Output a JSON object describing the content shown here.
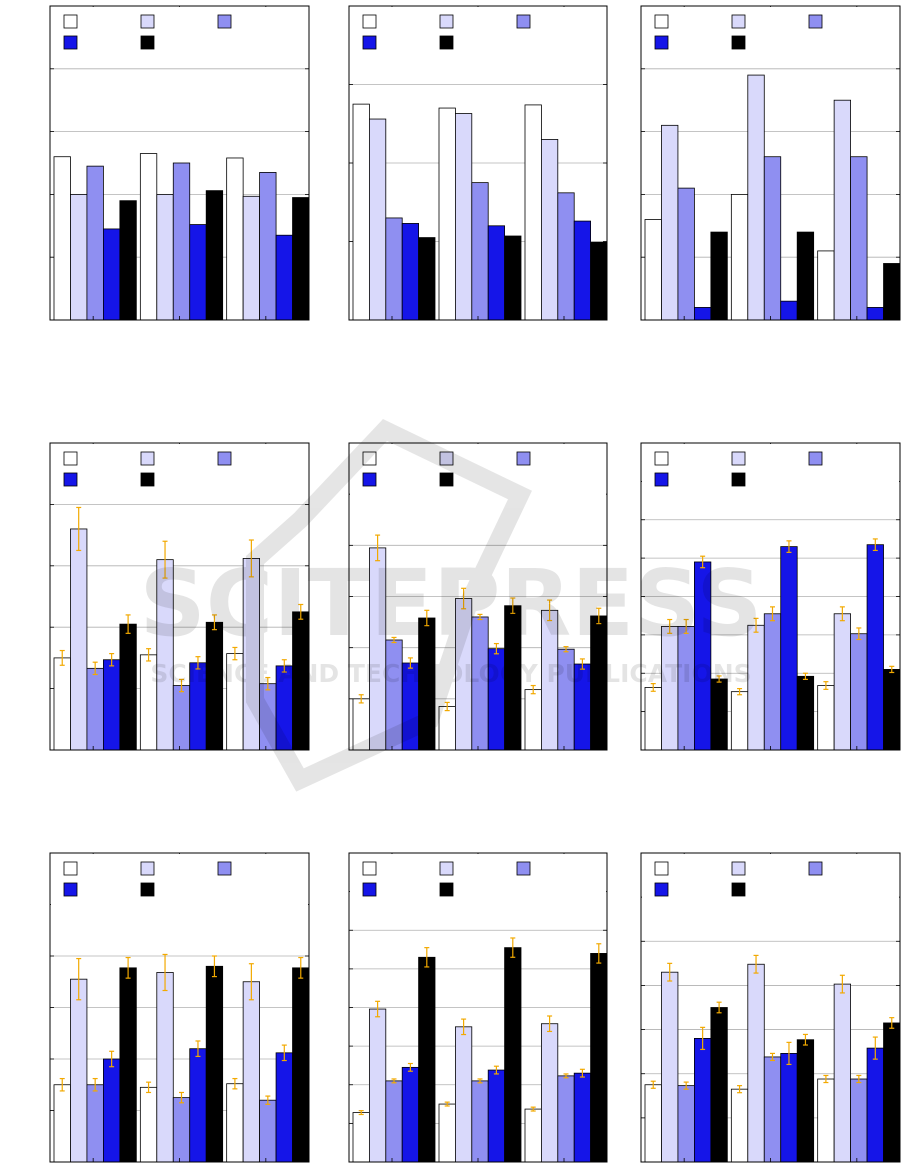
{
  "colors": {
    "s1": "#ffffff",
    "s2": "#d9d9fb",
    "s3": "#8f8ff1",
    "s4": "#1515e8",
    "s5": "#000000",
    "error_bar": "#f2a900",
    "grid": "#b0b0b0"
  },
  "watermark": {
    "main": "SCITEPRESS",
    "sub": "SCIENCE AND TECHNOLOGY PUBLICATIONS"
  },
  "chart_data": [
    {
      "type": "bar",
      "ylim": [
        0,
        5
      ],
      "legend": "top-left",
      "grid": true,
      "error_bars": false,
      "series": [
        {
          "values": [
            2.6,
            2.65,
            2.58
          ]
        },
        {
          "values": [
            2.0,
            2.0,
            1.97
          ]
        },
        {
          "values": [
            2.45,
            2.5,
            2.35
          ]
        },
        {
          "values": [
            1.45,
            1.52,
            1.35
          ]
        },
        {
          "values": [
            1.9,
            2.06,
            1.95
          ]
        }
      ]
    },
    {
      "type": "bar",
      "ylim": [
        0,
        4
      ],
      "legend": "top-left",
      "grid": true,
      "error_bars": false,
      "series": [
        {
          "values": [
            2.75,
            2.7,
            2.74
          ]
        },
        {
          "values": [
            2.56,
            2.63,
            2.3
          ]
        },
        {
          "values": [
            1.3,
            1.75,
            1.62
          ]
        },
        {
          "values": [
            1.23,
            1.2,
            1.26
          ]
        },
        {
          "values": [
            1.05,
            1.07,
            0.99
          ]
        }
      ]
    },
    {
      "type": "bar",
      "ylim": [
        0,
        5
      ],
      "legend": "top-left",
      "grid": true,
      "error_bars": false,
      "series": [
        {
          "values": [
            1.6,
            2.0,
            1.1
          ]
        },
        {
          "values": [
            3.1,
            3.9,
            3.5
          ]
        },
        {
          "values": [
            2.1,
            2.6,
            2.6
          ]
        },
        {
          "values": [
            0.2,
            0.3,
            0.2
          ]
        },
        {
          "values": [
            1.4,
            1.4,
            0.9
          ]
        }
      ]
    },
    {
      "type": "bar",
      "ylim": [
        0,
        5
      ],
      "legend": "top-left",
      "grid": true,
      "error_bars": true,
      "series": [
        {
          "values": [
            1.5,
            1.55,
            1.57
          ],
          "errors": [
            0.12,
            0.1,
            0.1
          ]
        },
        {
          "values": [
            3.6,
            3.1,
            3.12
          ],
          "errors": [
            0.35,
            0.3,
            0.3
          ]
        },
        {
          "values": [
            1.33,
            1.05,
            1.08
          ],
          "errors": [
            0.1,
            0.1,
            0.1
          ]
        },
        {
          "values": [
            1.47,
            1.42,
            1.37
          ],
          "errors": [
            0.1,
            0.1,
            0.1
          ]
        },
        {
          "values": [
            2.05,
            2.08,
            2.25
          ],
          "errors": [
            0.15,
            0.12,
            0.12
          ]
        }
      ]
    },
    {
      "type": "bar",
      "ylim": [
        0,
        6
      ],
      "legend": "top-left",
      "grid": true,
      "error_bars": true,
      "series": [
        {
          "values": [
            1.0,
            0.85,
            1.18
          ],
          "errors": [
            0.08,
            0.08,
            0.08
          ]
        },
        {
          "values": [
            3.95,
            2.96,
            2.73
          ],
          "errors": [
            0.25,
            0.2,
            0.2
          ]
        },
        {
          "values": [
            2.15,
            2.6,
            1.97
          ],
          "errors": [
            0.05,
            0.05,
            0.05
          ]
        },
        {
          "values": [
            1.7,
            1.98,
            1.68
          ],
          "errors": [
            0.1,
            0.1,
            0.1
          ]
        },
        {
          "values": [
            2.58,
            2.82,
            2.62
          ],
          "errors": [
            0.15,
            0.15,
            0.15
          ]
        }
      ]
    },
    {
      "type": "bar",
      "ylim": [
        0,
        8
      ],
      "legend": "top-left",
      "grid": true,
      "error_bars": true,
      "series": [
        {
          "values": [
            1.63,
            1.52,
            1.68
          ],
          "errors": [
            0.1,
            0.08,
            0.1
          ]
        },
        {
          "values": [
            3.22,
            3.25,
            3.55
          ],
          "errors": [
            0.18,
            0.18,
            0.18
          ]
        },
        {
          "values": [
            3.22,
            3.55,
            3.03
          ],
          "errors": [
            0.18,
            0.18,
            0.15
          ]
        },
        {
          "values": [
            4.9,
            5.3,
            5.35
          ],
          "errors": [
            0.15,
            0.15,
            0.15
          ]
        },
        {
          "values": [
            1.85,
            1.92,
            2.1
          ],
          "errors": [
            0.08,
            0.08,
            0.08
          ]
        }
      ]
    },
    {
      "type": "bar",
      "ylim": [
        0,
        6
      ],
      "legend": "top-left",
      "grid": true,
      "error_bars": true,
      "series": [
        {
          "values": [
            1.5,
            1.45,
            1.52
          ],
          "errors": [
            0.12,
            0.1,
            0.1
          ]
        },
        {
          "values": [
            3.55,
            3.68,
            3.5
          ],
          "errors": [
            0.4,
            0.35,
            0.35
          ]
        },
        {
          "values": [
            1.5,
            1.25,
            1.2
          ],
          "errors": [
            0.12,
            0.1,
            0.08
          ]
        },
        {
          "values": [
            2.0,
            2.2,
            2.12
          ],
          "errors": [
            0.15,
            0.15,
            0.15
          ]
        },
        {
          "values": [
            3.77,
            3.8,
            3.77
          ],
          "errors": [
            0.2,
            0.2,
            0.2
          ]
        }
      ]
    },
    {
      "type": "bar",
      "ylim": [
        0,
        8
      ],
      "legend": "top-left",
      "grid": true,
      "error_bars": true,
      "series": [
        {
          "values": [
            1.28,
            1.5,
            1.37
          ],
          "errors": [
            0.05,
            0.05,
            0.05
          ]
        },
        {
          "values": [
            3.96,
            3.5,
            3.58
          ],
          "errors": [
            0.2,
            0.2,
            0.2
          ]
        },
        {
          "values": [
            2.1,
            2.1,
            2.23
          ],
          "errors": [
            0.05,
            0.05,
            0.05
          ]
        },
        {
          "values": [
            2.45,
            2.38,
            2.3
          ],
          "errors": [
            0.1,
            0.1,
            0.1
          ]
        },
        {
          "values": [
            5.3,
            5.55,
            5.4
          ],
          "errors": [
            0.25,
            0.25,
            0.25
          ]
        }
      ]
    },
    {
      "type": "bar",
      "ylim": [
        0,
        7
      ],
      "legend": "top-left",
      "grid": true,
      "error_bars": true,
      "series": [
        {
          "values": [
            1.75,
            1.65,
            1.88
          ],
          "errors": [
            0.08,
            0.08,
            0.08
          ]
        },
        {
          "values": [
            4.3,
            4.48,
            4.03
          ],
          "errors": [
            0.2,
            0.2,
            0.2
          ]
        },
        {
          "values": [
            1.73,
            2.38,
            1.88
          ],
          "errors": [
            0.08,
            0.08,
            0.08
          ]
        },
        {
          "values": [
            2.8,
            2.46,
            2.58
          ],
          "errors": [
            0.25,
            0.25,
            0.25
          ]
        },
        {
          "values": [
            3.5,
            2.77,
            3.15
          ],
          "errors": [
            0.12,
            0.12,
            0.12
          ]
        }
      ]
    }
  ]
}
